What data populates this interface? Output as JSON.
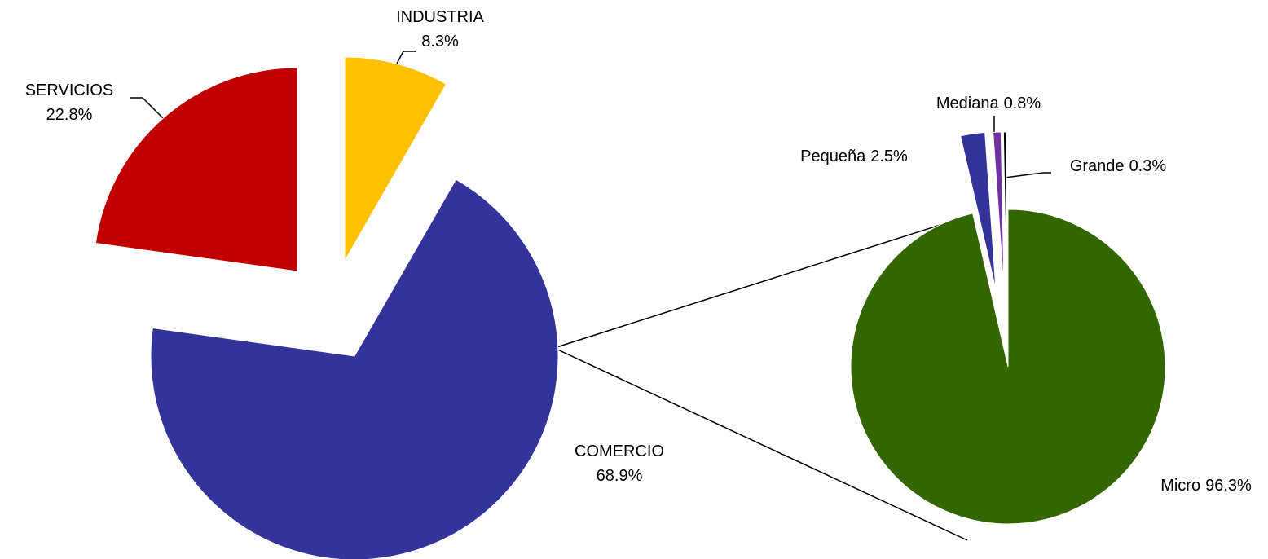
{
  "chart_data": [
    {
      "type": "pie",
      "categories": [
        "INDUSTRIA",
        "COMERCIO",
        "SERVICIOS"
      ],
      "values": [
        8.3,
        68.9,
        22.8
      ],
      "value_labels": [
        "8.3%",
        "68.9%",
        "22.8%"
      ],
      "colors": [
        "#FFC000",
        "#333399",
        "#C00000"
      ]
    },
    {
      "type": "pie",
      "categories": [
        "Micro",
        "Pequeña",
        "Mediana",
        "Grande"
      ],
      "values": [
        96.3,
        2.5,
        0.8,
        0.3
      ],
      "value_labels": [
        "96.3%",
        "2.5%",
        "0.8%",
        "0.3%"
      ],
      "colors": [
        "#336600",
        "#333399",
        "#7030A0",
        "#000000"
      ]
    }
  ]
}
